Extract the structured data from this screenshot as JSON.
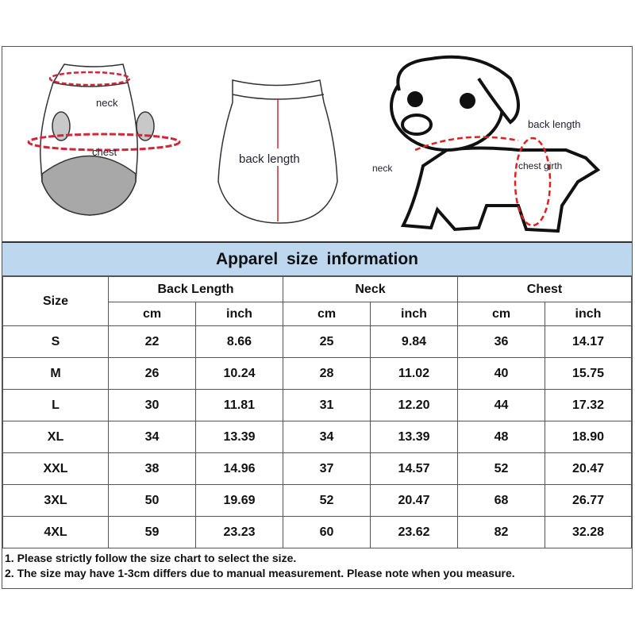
{
  "illustration": {
    "front_labels": {
      "neck": "neck",
      "chest": "chest"
    },
    "back_label": "back length",
    "dog_labels": {
      "back_length": "back length",
      "neck": "neck",
      "chest_girth": "chest girth"
    }
  },
  "title": "Apparel size information",
  "table": {
    "size_header": "Size",
    "groups": [
      "Back Length",
      "Neck",
      "Chest"
    ],
    "units": [
      "cm",
      "inch",
      "cm",
      "inch",
      "cm",
      "inch"
    ],
    "rows": [
      [
        "S",
        "22",
        "8.66",
        "25",
        "9.84",
        "36",
        "14.17"
      ],
      [
        "M",
        "26",
        "10.24",
        "28",
        "11.02",
        "40",
        "15.75"
      ],
      [
        "L",
        "30",
        "11.81",
        "31",
        "12.20",
        "44",
        "17.32"
      ],
      [
        "XL",
        "34",
        "13.39",
        "34",
        "13.39",
        "48",
        "18.90"
      ],
      [
        "XXL",
        "38",
        "14.96",
        "37",
        "14.57",
        "52",
        "20.47"
      ],
      [
        "3XL",
        "50",
        "19.69",
        "52",
        "20.47",
        "68",
        "26.77"
      ],
      [
        "4XL",
        "59",
        "23.23",
        "60",
        "23.62",
        "82",
        "32.28"
      ]
    ]
  },
  "notes": [
    "1. Please strictly follow the size chart  to select the size.",
    "2. The size may have 1-3cm differs due to manual measurement. Please note when you measure."
  ],
  "colors": {
    "title_bg": "#bdd7ee",
    "measure_red": "#d0263a"
  }
}
